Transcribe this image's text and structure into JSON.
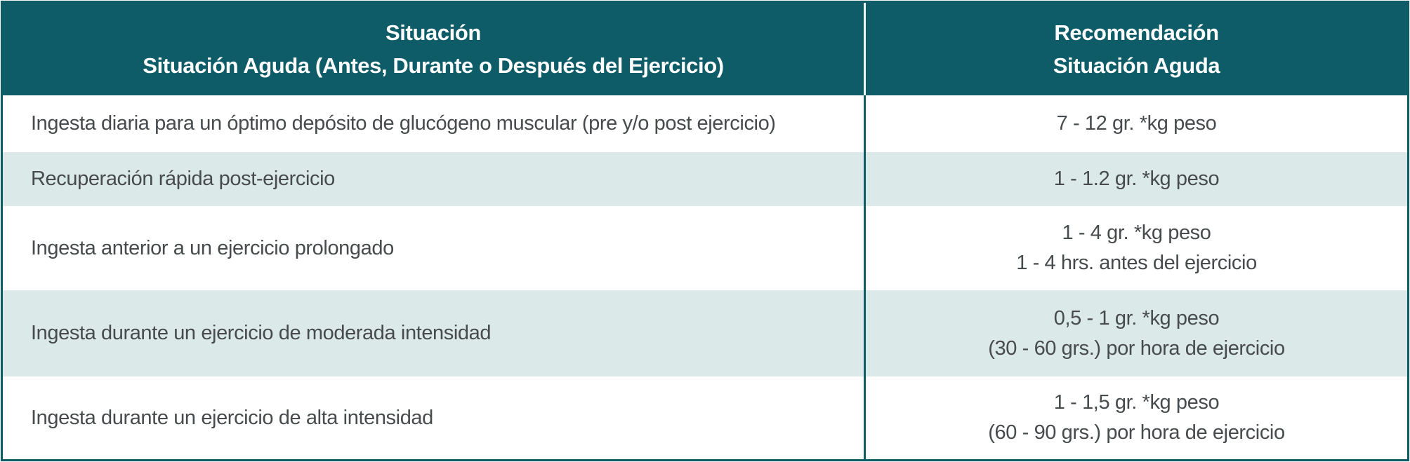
{
  "table": {
    "title_semantic": "Recomendaciones de ingesta de carbohidratos",
    "colors": {
      "header_background": "#0d5c68",
      "header_text": "#ffffff",
      "stripe_background": "#dce9e9",
      "row_background": "#ffffff",
      "body_text": "#474b4d",
      "border": "#0d5c68",
      "header_divider": "#eef4f4"
    },
    "header": {
      "col1_line1": "Situación",
      "col1_line2": "Situación Aguda (Antes, Durante o Después del Ejercicio)",
      "col2_line1": "Recomendación",
      "col2_line2": "Situación Aguda"
    },
    "rows": [
      {
        "situation": "Ingesta diaria para un óptimo depósito de glucógeno muscular (pre y/o post ejercicio)",
        "recommendation_line1": "7 - 12 gr. *kg peso",
        "recommendation_line2": ""
      },
      {
        "situation": "Recuperación rápida post-ejercicio",
        "recommendation_line1": "1 - 1.2 gr. *kg peso",
        "recommendation_line2": ""
      },
      {
        "situation": "Ingesta anterior a un ejercicio prolongado",
        "recommendation_line1": "1 - 4 gr. *kg peso",
        "recommendation_line2": "1 - 4 hrs. antes del ejercicio"
      },
      {
        "situation": "Ingesta durante un ejercicio de moderada intensidad",
        "recommendation_line1": "0,5 - 1 gr. *kg peso",
        "recommendation_line2": "(30 - 60 grs.) por hora de ejercicio"
      },
      {
        "situation": "Ingesta durante un ejercicio de alta intensidad",
        "recommendation_line1": "1 - 1,5 gr. *kg peso",
        "recommendation_line2": "(60 - 90 grs.) por hora de ejercicio"
      }
    ]
  },
  "chart_data": {
    "type": "table",
    "columns": [
      "Situación / Situación Aguda (Antes, Durante o Después del Ejercicio)",
      "Recomendación / Situación Aguda"
    ],
    "rows": [
      [
        "Ingesta diaria para un óptimo depósito de glucógeno muscular (pre y/o post ejercicio)",
        "7 - 12 gr. *kg peso"
      ],
      [
        "Recuperación rápida post-ejercicio",
        "1 - 1.2 gr. *kg peso"
      ],
      [
        "Ingesta anterior a un ejercicio prolongado",
        "1 - 4 gr. *kg peso | 1 - 4 hrs. antes del ejercicio"
      ],
      [
        "Ingesta durante un ejercicio de moderada intensidad",
        "0,5 - 1 gr. *kg peso | (30 - 60 grs.) por hora de ejercicio"
      ],
      [
        "Ingesta durante un ejercicio de alta intensidad",
        "1 - 1,5 gr. *kg peso | (60 - 90 grs.) por hora de ejercicio"
      ]
    ]
  }
}
